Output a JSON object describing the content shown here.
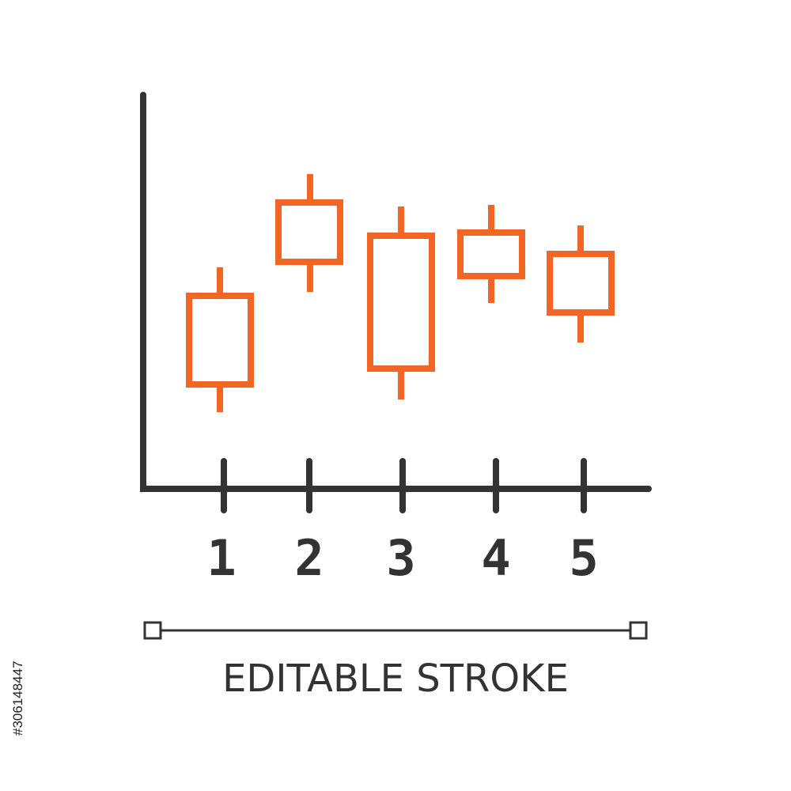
{
  "x_labels": [
    "1",
    "2",
    "3",
    "4",
    "5"
  ],
  "caption": "EDITABLE STROKE",
  "stock_id": "#306148447"
}
